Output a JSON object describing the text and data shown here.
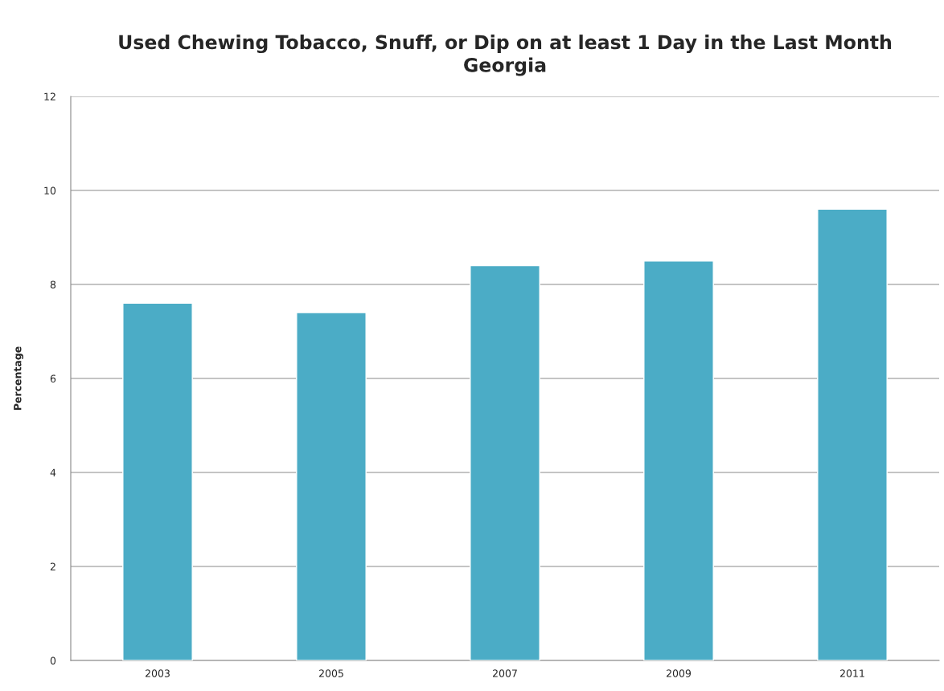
{
  "chart_data": {
    "type": "bar",
    "title": "Used Chewing Tobacco, Snuff, or Dip on at least 1 Day in the Last Month\nGeorgia",
    "ylabel": "Percentage",
    "categories": [
      "2003",
      "2005",
      "2007",
      "2009",
      "2011"
    ],
    "values": [
      7.6,
      7.4,
      8.4,
      8.5,
      9.6
    ],
    "color": "#4bacc6",
    "ylim": [
      0,
      12
    ],
    "yticks": [
      0,
      2,
      4,
      6,
      8,
      10,
      12
    ],
    "grid": "y",
    "legend": false
  }
}
